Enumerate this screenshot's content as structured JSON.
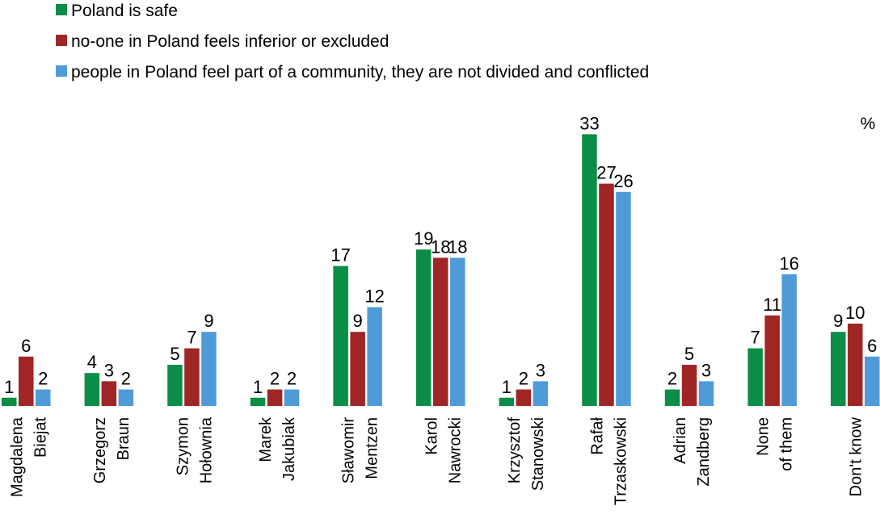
{
  "chart_data": {
    "type": "bar",
    "unit_label": "%",
    "categories": [
      [
        "Magdalena",
        "Biejat"
      ],
      [
        "Grzegorz",
        "Braun"
      ],
      [
        "Szymon",
        "Hołownia"
      ],
      [
        "Marek",
        "Jakubiak"
      ],
      [
        "Sławomir",
        "Mentzen"
      ],
      [
        "Karol",
        "Nawrocki"
      ],
      [
        "Krzysztof",
        "Stanowski"
      ],
      [
        "Rafał",
        "Trzaskowski"
      ],
      [
        "Adrian",
        "Zandberg"
      ],
      [
        "None",
        "of them"
      ],
      [
        "Don't know"
      ]
    ],
    "series": [
      {
        "name": "Poland is safe",
        "color": "#0a8d46",
        "values": [
          1,
          4,
          5,
          1,
          17,
          19,
          1,
          33,
          2,
          7,
          9
        ]
      },
      {
        "name": "no-one in Poland feels inferior or excluded",
        "color": "#a02525",
        "values": [
          6,
          3,
          7,
          2,
          9,
          18,
          2,
          27,
          5,
          11,
          10
        ]
      },
      {
        "name": "people in Poland feel part of a community, they are not divided and conflicted",
        "color": "#4f9bd8",
        "values": [
          2,
          2,
          9,
          2,
          12,
          18,
          3,
          26,
          3,
          16,
          6
        ]
      }
    ],
    "ylim": [
      0,
      33
    ],
    "grid": false,
    "legend_position": "top-left"
  }
}
